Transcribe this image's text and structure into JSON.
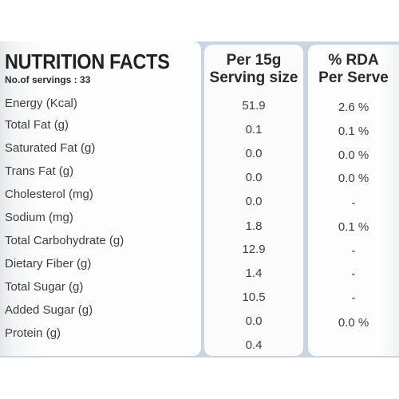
{
  "label": {
    "title": "NUTRITION FACTS",
    "servings": "No.of servings : 33",
    "column_per_serving_line1": "Per 15g",
    "column_per_serving_line2": "Serving size",
    "column_rda_line1": "% RDA",
    "column_rda_line2": "Per Serve",
    "rows": [
      {
        "name": "Energy (Kcal)",
        "per_serving": "51.9",
        "rda": "2.6 %"
      },
      {
        "name": "Total Fat (g)",
        "per_serving": "0.1",
        "rda": "0.1 %"
      },
      {
        "name": "Saturated Fat (g)",
        "per_serving": "0.0",
        "rda": "0.0 %"
      },
      {
        "name": "Trans Fat (g)",
        "per_serving": "0.0",
        "rda": "0.0 %"
      },
      {
        "name": "Cholesterol (mg)",
        "per_serving": "0.0",
        "rda": "-"
      },
      {
        "name": "Sodium (mg)",
        "per_serving": "1.8",
        "rda": "0.1 %"
      },
      {
        "name": "Total Carbohydrate (g)",
        "per_serving": "12.9",
        "rda": "-"
      },
      {
        "name": "Dietary Fiber (g)",
        "per_serving": "1.4",
        "rda": "-"
      },
      {
        "name": "Total Sugar (g)",
        "per_serving": "10.5",
        "rda": "-"
      },
      {
        "name": "Added Sugar (g)",
        "per_serving": "0.0",
        "rda": "0.0 %"
      },
      {
        "name": "Protein (g)",
        "per_serving": "0.4",
        "rda": ""
      }
    ]
  }
}
